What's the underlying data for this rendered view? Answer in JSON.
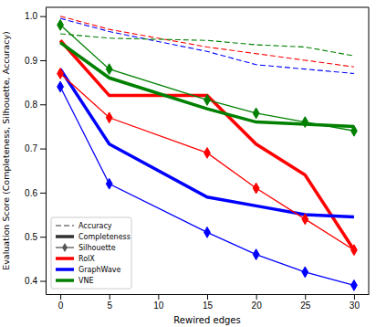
{
  "chart_data": {
    "type": "line",
    "x_label": "Rewired edges",
    "y_label": "Evaluation Score (Completeness, Silhouette, Accuracy)",
    "x": [
      0,
      5,
      15,
      20,
      25,
      30
    ],
    "xlim": [
      -1.5,
      31.5
    ],
    "xticks": [
      0,
      5,
      10,
      15,
      20,
      25,
      30
    ],
    "ylim": [
      0.37,
      1.02
    ],
    "yticks": [
      0.4,
      0.5,
      0.6,
      0.7,
      0.8,
      0.9,
      {
        "value": 1,
        "label": "1.0"
      }
    ],
    "legend": "lower left",
    "series": [
      {
        "name": "RolX",
        "metric": "Accuracy",
        "color": "red",
        "line_style": "dashed",
        "values": [
          1.0,
          0.97,
          0.93,
          0.915,
          0.9,
          0.885
        ]
      },
      {
        "name": "GraphWave",
        "metric": "Accuracy",
        "color": "blue",
        "line_style": "dashed",
        "values": [
          0.995,
          0.965,
          0.92,
          0.89,
          0.88,
          0.87
        ]
      },
      {
        "name": "VNE",
        "metric": "Accuracy",
        "color": "green",
        "line_style": "dashed",
        "values": [
          0.96,
          0.95,
          0.945,
          0.935,
          0.93,
          0.91
        ]
      },
      {
        "name": "RolX",
        "metric": "Completeness",
        "color": "red",
        "line_style": "thick",
        "values": [
          0.945,
          0.82,
          0.82,
          0.71,
          0.64,
          0.47
        ]
      },
      {
        "name": "GraphWave",
        "metric": "Completeness",
        "color": "blue",
        "line_style": "thick",
        "values": [
          0.88,
          0.71,
          0.59,
          0.57,
          0.55,
          0.545
        ]
      },
      {
        "name": "VNE",
        "metric": "Completeness",
        "color": "green",
        "line_style": "thick",
        "values": [
          0.94,
          0.86,
          0.79,
          0.76,
          0.755,
          0.75
        ]
      },
      {
        "name": "RolX",
        "metric": "Silhouette",
        "color": "red",
        "line_style": "solid",
        "marker": "diamond",
        "values": [
          0.87,
          0.77,
          0.69,
          0.61,
          0.54,
          0.47
        ]
      },
      {
        "name": "GraphWave",
        "metric": "Silhouette",
        "color": "blue",
        "line_style": "solid",
        "marker": "diamond",
        "values": [
          0.84,
          0.62,
          0.51,
          0.46,
          0.42,
          0.39
        ]
      },
      {
        "name": "VNE",
        "metric": "Silhouette",
        "color": "green",
        "line_style": "solid",
        "marker": "diamond",
        "values": [
          0.98,
          0.88,
          0.81,
          0.78,
          0.76,
          0.74
        ]
      }
    ]
  }
}
